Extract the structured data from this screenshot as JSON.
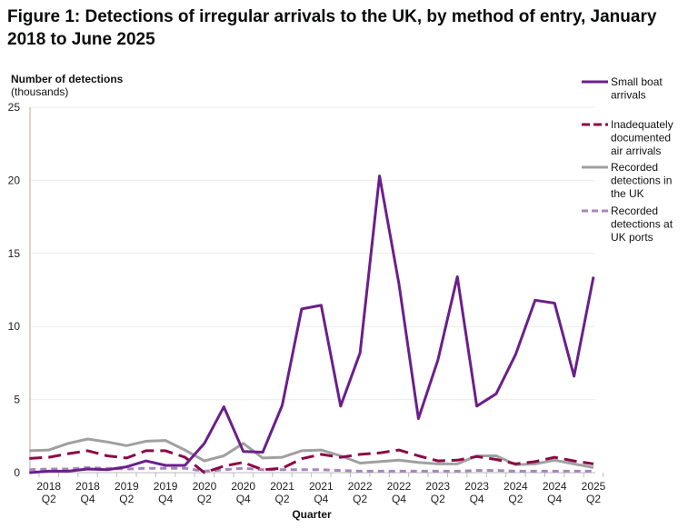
{
  "title": "Figure 1: Detections of irregular arrivals to the UK, by method of entry, January 2018 to June 2025",
  "chart_data": {
    "type": "line",
    "title": "Figure 1: Detections of irregular arrivals to the UK, by method of entry, January 2018 to June 2025",
    "ylabel_line1": "Number of detections",
    "ylabel_line2": "(thousands)",
    "xlabel": "Quarter",
    "ylim": [
      0,
      25
    ],
    "yticks": [
      0,
      5,
      10,
      15,
      20,
      25
    ],
    "grid": true,
    "legend_position": "right",
    "x": [
      "2018 Q1",
      "2018 Q2",
      "2018 Q3",
      "2018 Q4",
      "2019 Q1",
      "2019 Q2",
      "2019 Q3",
      "2019 Q4",
      "2020 Q1",
      "2020 Q2",
      "2020 Q3",
      "2020 Q4",
      "2021 Q1",
      "2021 Q2",
      "2021 Q3",
      "2021 Q4",
      "2022 Q1",
      "2022 Q2",
      "2022 Q3",
      "2022 Q4",
      "2023 Q1",
      "2023 Q2",
      "2023 Q3",
      "2023 Q4",
      "2024 Q1",
      "2024 Q2",
      "2024 Q3",
      "2024 Q4",
      "2025 Q1",
      "2025 Q2"
    ],
    "xtick_labels": [
      {
        "year": "2018",
        "q": "Q2"
      },
      {
        "year": "2018",
        "q": "Q4"
      },
      {
        "year": "2019",
        "q": "Q2"
      },
      {
        "year": "2019",
        "q": "Q4"
      },
      {
        "year": "2020",
        "q": "Q2"
      },
      {
        "year": "2020",
        "q": "Q4"
      },
      {
        "year": "2021",
        "q": "Q2"
      },
      {
        "year": "2021",
        "q": "Q4"
      },
      {
        "year": "2022",
        "q": "Q2"
      },
      {
        "year": "2022",
        "q": "Q4"
      },
      {
        "year": "2023",
        "q": "Q2"
      },
      {
        "year": "2023",
        "q": "Q4"
      },
      {
        "year": "2024",
        "q": "Q2"
      },
      {
        "year": "2024",
        "q": "Q4"
      },
      {
        "year": "2025",
        "q": "Q2"
      }
    ],
    "series": [
      {
        "name": "Small boat arrivals",
        "legend_lines": [
          "Small boat",
          "arrivals"
        ],
        "color": "#6b1f8a",
        "style": "solid",
        "values": [
          0.0,
          0.1,
          0.1,
          0.25,
          0.2,
          0.4,
          0.8,
          0.5,
          0.5,
          2.0,
          4.5,
          1.45,
          1.4,
          4.6,
          11.2,
          11.45,
          4.55,
          8.2,
          20.3,
          12.9,
          3.7,
          7.7,
          13.4,
          4.55,
          5.4,
          8.1,
          11.8,
          11.6,
          6.6,
          13.4
        ]
      },
      {
        "name": "Inadequately documented air arrivals",
        "legend_lines": [
          "Inadequately",
          "documented",
          "air arrivals"
        ],
        "color": "#8a0a45",
        "style": "dashed",
        "values": [
          0.97,
          1.05,
          1.3,
          1.5,
          1.15,
          1.0,
          1.5,
          1.5,
          1.05,
          0.0,
          0.45,
          0.7,
          0.2,
          0.3,
          0.95,
          1.25,
          1.05,
          1.25,
          1.35,
          1.55,
          1.15,
          0.8,
          0.85,
          1.1,
          0.9,
          0.6,
          0.75,
          1.05,
          0.8,
          0.6
        ]
      },
      {
        "name": "Recorded detections in the UK",
        "legend_lines": [
          "Recorded",
          "detections in",
          "the UK"
        ],
        "color": "#a0a0a0",
        "style": "solid",
        "values": [
          1.5,
          1.55,
          2.0,
          2.3,
          2.1,
          1.85,
          2.15,
          2.2,
          1.55,
          0.8,
          1.15,
          2.0,
          1.0,
          1.05,
          1.5,
          1.55,
          1.15,
          0.65,
          0.75,
          0.85,
          0.7,
          0.6,
          0.6,
          1.15,
          1.15,
          0.55,
          0.6,
          0.85,
          0.6,
          0.35
        ]
      },
      {
        "name": "Recorded detections at UK ports",
        "legend_lines": [
          "Recorded",
          "detections at",
          "UK ports"
        ],
        "color": "#a985bf",
        "style": "dotted",
        "values": [
          0.2,
          0.25,
          0.25,
          0.35,
          0.3,
          0.25,
          0.3,
          0.3,
          0.3,
          0.1,
          0.2,
          0.3,
          0.2,
          0.2,
          0.2,
          0.2,
          0.15,
          0.1,
          0.1,
          0.1,
          0.1,
          0.1,
          0.1,
          0.15,
          0.15,
          0.1,
          0.1,
          0.1,
          0.1,
          0.1
        ]
      }
    ]
  }
}
